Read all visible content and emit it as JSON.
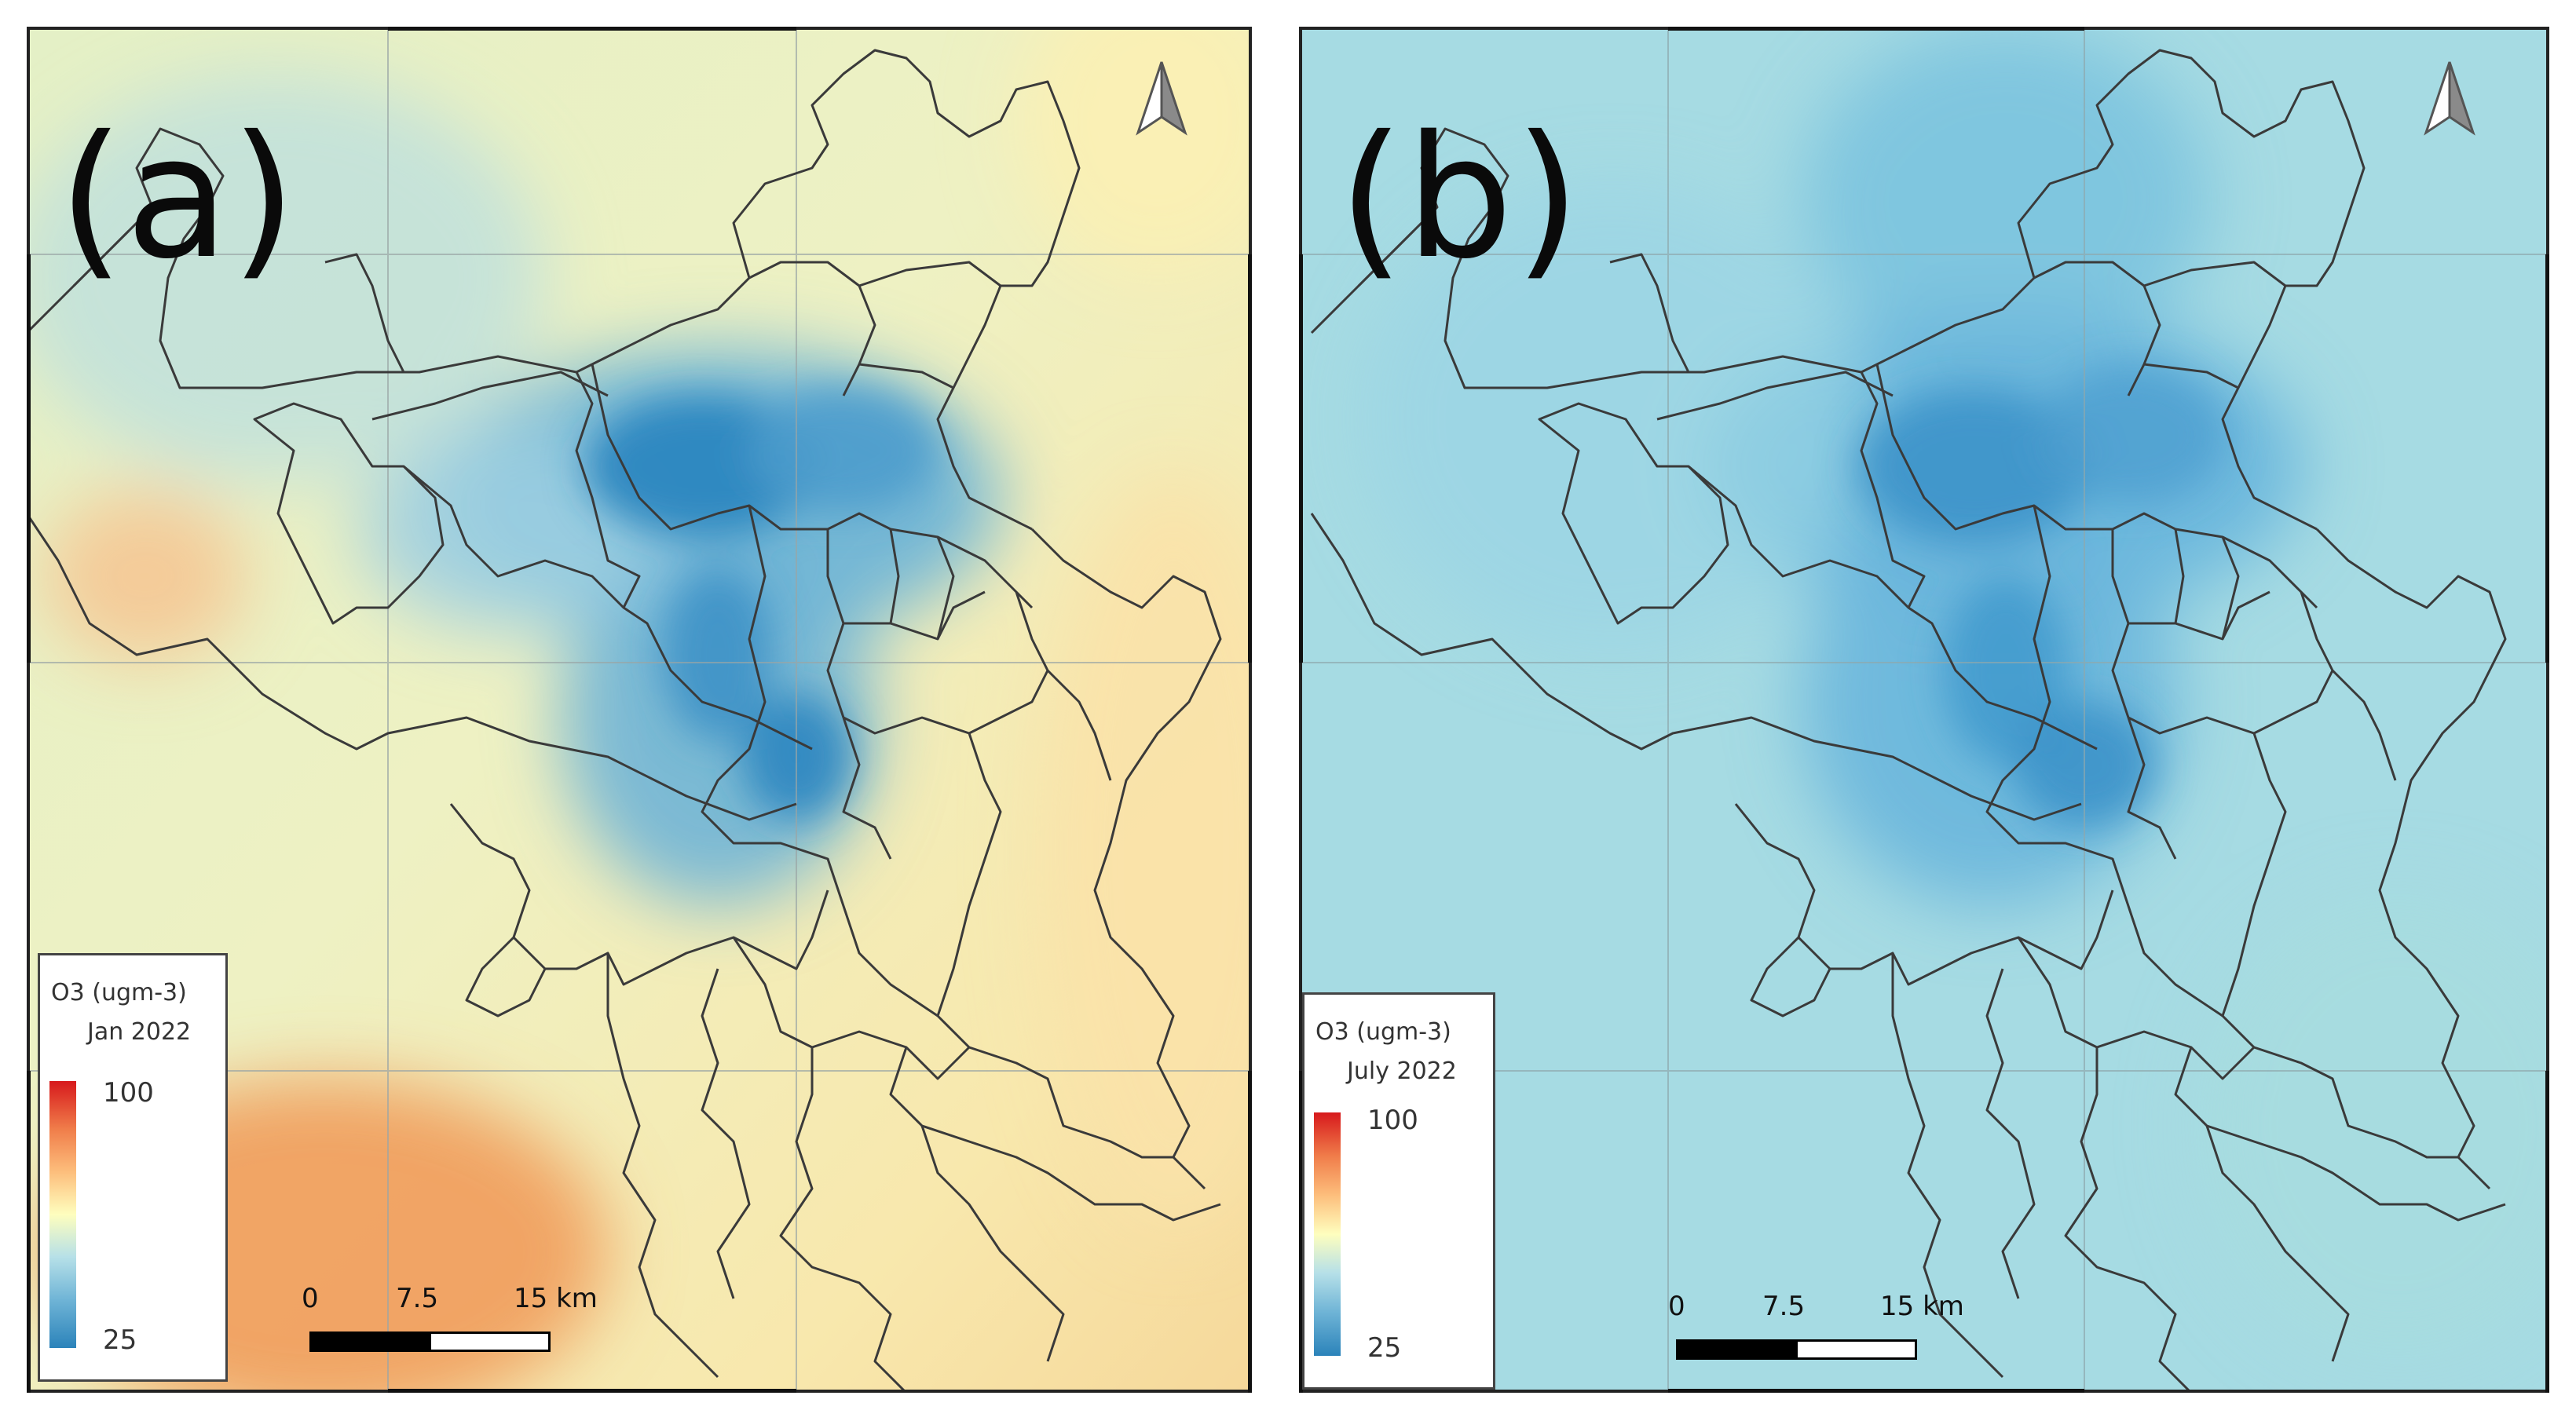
{
  "panels": [
    {
      "label": "(a)",
      "legend_title": "O3 (ugm-3)",
      "legend_period": "Jan 2022",
      "legend_max": "100",
      "legend_min": "25",
      "scale_ticks": [
        "0",
        "7.5",
        "15 km"
      ],
      "north_arrow_icon": "north-arrow-icon",
      "colors": {
        "background": "#f5eebc",
        "low": "#2b83ba",
        "high": "#f07d4a"
      }
    },
    {
      "label": "(b)",
      "legend_title": "O3 (ugm-3)",
      "legend_period": "July 2022",
      "legend_max": "100",
      "legend_min": "25",
      "scale_ticks": [
        "0",
        "7.5",
        "15 km"
      ],
      "north_arrow_icon": "north-arrow-icon",
      "colors": {
        "background": "#a2d9e3",
        "low": "#2b83ba",
        "high": "#d7191c"
      }
    }
  ]
}
